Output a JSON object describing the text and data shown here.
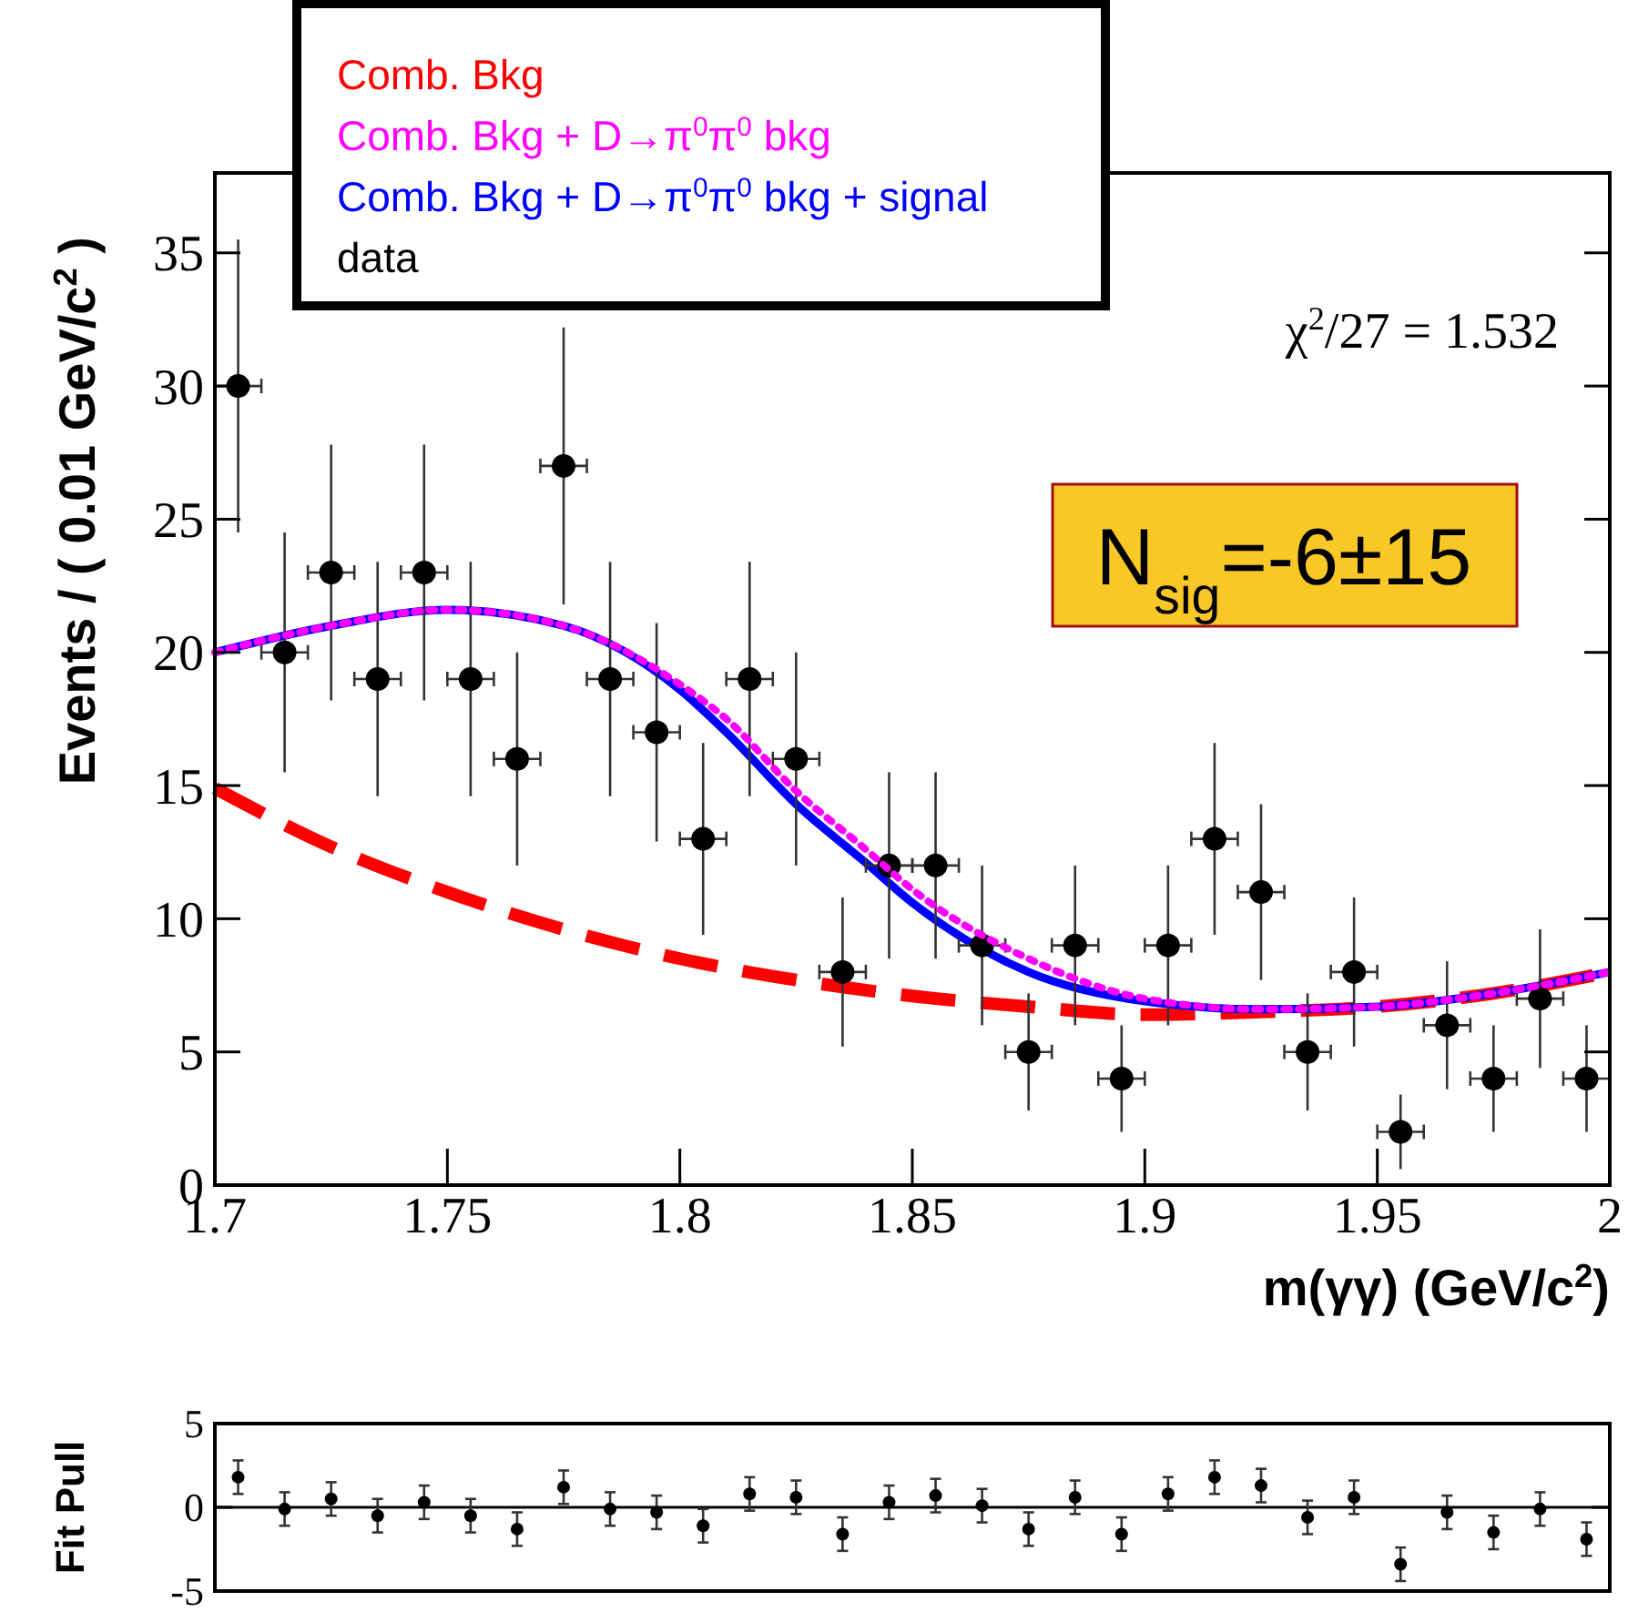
{
  "chart_data": [
    {
      "type": "scatter",
      "xlabel": "m(γγ) (GeV/c$^{2}$)",
      "ylabel": "Events / ( 0.01 GeV/c$^{2}$ )",
      "xlim": [
        1.7,
        2.0
      ],
      "xticks": [
        1.7,
        1.75,
        1.8,
        1.85,
        1.9,
        1.95,
        {
          "value": 2.0,
          "label": "2"
        }
      ],
      "ylim": [
        0,
        38
      ],
      "yticks": [
        0,
        5,
        10,
        15,
        20,
        25,
        30,
        35
      ],
      "legend": "top left",
      "annotations": [
        "χ$^{2}$/27 = 1.532",
        "N$_{sig}$=-6±15"
      ],
      "series": [
        {
          "name": "Comb. Bkg",
          "type": "line",
          "line_style": "dashed",
          "color": "#ff0000",
          "x": [
            1.7,
            1.725,
            1.75,
            1.775,
            1.8,
            1.825,
            1.85,
            1.875,
            1.9,
            1.925,
            1.95,
            1.975,
            2.0
          ],
          "values": [
            14.9,
            12.7,
            11.0,
            9.6,
            8.5,
            7.7,
            7.1,
            6.7,
            6.4,
            6.5,
            6.7,
            7.2,
            8.0
          ]
        },
        {
          "name": "Comb. Bkg + D→π$^{0}$π$^{0}$ bkg",
          "type": "line",
          "line_style": "dotted",
          "color": "#ff00ff",
          "x": [
            1.7,
            1.725,
            1.75,
            1.775,
            1.8,
            1.81,
            1.825,
            1.84,
            1.85,
            1.875,
            1.9,
            1.925,
            1.95,
            1.975,
            2.0
          ],
          "values": [
            20.0,
            21.0,
            21.6,
            21.0,
            18.8,
            17.5,
            14.8,
            12.6,
            11.1,
            8.5,
            7.0,
            6.6,
            6.7,
            7.2,
            8.0
          ]
        },
        {
          "name": "Comb. Bkg + D→π$^{0}$π$^{0}$ bkg  + signal",
          "type": "line",
          "line_style": "solid",
          "color": "#0000ff",
          "x": [
            1.7,
            1.725,
            1.75,
            1.775,
            1.8,
            1.81,
            1.825,
            1.84,
            1.85,
            1.875,
            1.9,
            1.925,
            1.95,
            1.975,
            2.0
          ],
          "values": [
            20.0,
            21.0,
            21.6,
            21.0,
            18.6,
            17.0,
            14.3,
            12.1,
            10.6,
            8.0,
            6.9,
            6.6,
            6.7,
            7.2,
            8.0
          ]
        },
        {
          "name": "data",
          "marker": "circle",
          "color": "#000000",
          "x": [
            1.705,
            1.715,
            1.725,
            1.735,
            1.745,
            1.755,
            1.765,
            1.775,
            1.785,
            1.795,
            1.805,
            1.815,
            1.825,
            1.835,
            1.845,
            1.855,
            1.865,
            1.875,
            1.885,
            1.895,
            1.905,
            1.915,
            1.925,
            1.935,
            1.945,
            1.955,
            1.965,
            1.975,
            1.985,
            1.995
          ],
          "values": [
            30,
            20,
            23,
            19,
            23,
            19,
            16,
            27,
            19,
            17,
            13,
            19,
            16,
            8,
            12,
            12,
            9,
            5,
            9,
            4,
            9,
            13,
            11,
            5,
            8,
            2,
            6,
            4,
            7,
            4
          ],
          "errors": [
            5.5,
            4.5,
            4.8,
            4.4,
            4.8,
            4.4,
            4,
            5.2,
            4.4,
            4.1,
            3.6,
            4.4,
            4,
            2.8,
            3.5,
            3.5,
            3,
            2.2,
            3,
            2,
            3,
            3.6,
            3.3,
            2.2,
            2.8,
            1.4,
            2.4,
            2,
            2.6,
            2
          ],
          "xerrors": [
            0.005,
            0.005,
            0.005,
            0.005,
            0.005,
            0.005,
            0.005,
            0.005,
            0.005,
            0.005,
            0.005,
            0.005,
            0.005,
            0.005,
            0.005,
            0.005,
            0.005,
            0.005,
            0.005,
            0.005,
            0.005,
            0.005,
            0.005,
            0.005,
            0.005,
            0.005,
            0.005,
            0.005,
            0.005,
            0.005
          ]
        }
      ]
    },
    {
      "type": "scatter",
      "ylabel": "Fit Pull",
      "xlim": [
        1.7,
        2.0
      ],
      "ylim": [
        -5,
        5
      ],
      "yticks": [
        -5,
        0,
        5
      ],
      "tick_labels": "y",
      "marker": "circle",
      "ref_lines": [
        {
          "axis": "y",
          "value": 0
        }
      ],
      "series": [
        {
          "color": "#000000",
          "x": [
            1.705,
            1.715,
            1.725,
            1.735,
            1.745,
            1.755,
            1.765,
            1.775,
            1.785,
            1.795,
            1.805,
            1.815,
            1.825,
            1.835,
            1.845,
            1.855,
            1.865,
            1.875,
            1.885,
            1.895,
            1.905,
            1.915,
            1.925,
            1.935,
            1.945,
            1.955,
            1.965,
            1.975,
            1.985,
            1.995
          ],
          "values": [
            1.8,
            -0.1,
            0.5,
            -0.5,
            0.3,
            -0.5,
            -1.3,
            1.2,
            -0.1,
            -0.3,
            -1.1,
            0.8,
            0.6,
            -1.6,
            0.3,
            0.7,
            0.1,
            -1.3,
            0.6,
            -1.6,
            0.8,
            1.8,
            1.3,
            -0.6,
            0.6,
            -3.4,
            -0.3,
            -1.5,
            -0.1,
            -1.9
          ],
          "errors": [
            1,
            1,
            1,
            1,
            1,
            1,
            1,
            1,
            1,
            1,
            1,
            1,
            1,
            1,
            1,
            1,
            1,
            1,
            1,
            1,
            1,
            1,
            1,
            1,
            1,
            1,
            1,
            1,
            1,
            1
          ]
        }
      ]
    }
  ]
}
